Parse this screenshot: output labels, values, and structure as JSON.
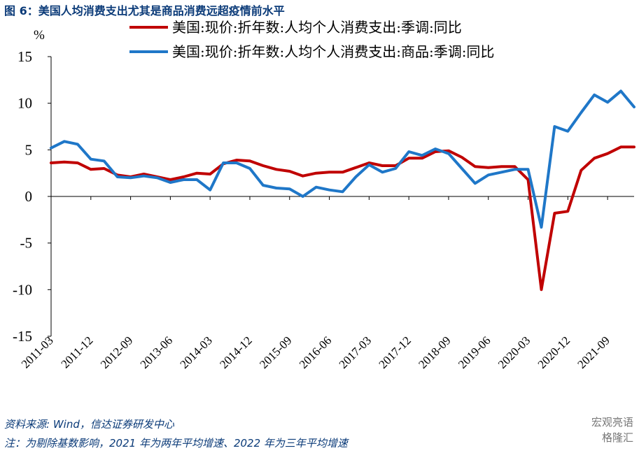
{
  "header": {
    "title": "图 6：美国人均消费支出尤其是商品消费远超疫情前水平"
  },
  "footer": {
    "source": "资料来源: Wind，信达证券研发中心",
    "note": "注：为剔除基数影响，2021 年为两年平均增速、2022 年为三年平均增速"
  },
  "watermark": {
    "line1": "宏观亮语",
    "line2": "格隆汇"
  },
  "chart_data": {
    "type": "line",
    "ylabel": "%",
    "ylim": [
      -15,
      15
    ],
    "yticks": [
      15,
      10,
      5,
      0,
      -5,
      -10,
      -15
    ],
    "xlim": [
      "2011-03",
      "2022-03"
    ],
    "xtick_labels": [
      "2011-03",
      "2011-12",
      "2012-09",
      "2013-06",
      "2014-03",
      "2014-12",
      "2015-09",
      "2016-06",
      "2017-03",
      "2017-12",
      "2018-09",
      "2019-06",
      "2020-03",
      "2020-12",
      "2021-09"
    ],
    "legend_position": "top",
    "series": [
      {
        "name": "美国:现价:折年数:人均个人消费支出:季调:同比",
        "color": "#c00000",
        "points": [
          [
            "2011-03",
            3.6
          ],
          [
            "2011-06",
            3.7
          ],
          [
            "2011-09",
            3.6
          ],
          [
            "2011-12",
            2.9
          ],
          [
            "2012-03",
            3.0
          ],
          [
            "2012-06",
            2.3
          ],
          [
            "2012-09",
            2.1
          ],
          [
            "2012-12",
            2.4
          ],
          [
            "2013-03",
            2.1
          ],
          [
            "2013-06",
            1.8
          ],
          [
            "2013-09",
            2.1
          ],
          [
            "2013-12",
            2.5
          ],
          [
            "2014-03",
            2.4
          ],
          [
            "2014-06",
            3.5
          ],
          [
            "2014-09",
            3.9
          ],
          [
            "2014-12",
            3.8
          ],
          [
            "2015-03",
            3.3
          ],
          [
            "2015-06",
            2.9
          ],
          [
            "2015-09",
            2.7
          ],
          [
            "2015-12",
            2.2
          ],
          [
            "2016-03",
            2.5
          ],
          [
            "2016-06",
            2.6
          ],
          [
            "2016-09",
            2.6
          ],
          [
            "2016-12",
            3.1
          ],
          [
            "2017-03",
            3.6
          ],
          [
            "2017-06",
            3.3
          ],
          [
            "2017-09",
            3.3
          ],
          [
            "2017-12",
            4.1
          ],
          [
            "2018-03",
            4.1
          ],
          [
            "2018-06",
            4.8
          ],
          [
            "2018-09",
            4.9
          ],
          [
            "2018-12",
            4.2
          ],
          [
            "2019-03",
            3.2
          ],
          [
            "2019-06",
            3.1
          ],
          [
            "2019-09",
            3.2
          ],
          [
            "2019-12",
            3.2
          ],
          [
            "2020-03",
            1.8
          ],
          [
            "2020-06",
            -10.0
          ],
          [
            "2020-09",
            -1.8
          ],
          [
            "2020-12",
            -1.6
          ],
          [
            "2021-03",
            2.8
          ],
          [
            "2021-06",
            4.1
          ],
          [
            "2021-09",
            4.6
          ],
          [
            "2021-12",
            5.3
          ],
          [
            "2022-03",
            5.3
          ]
        ]
      },
      {
        "name": "美国:现价:折年数:人均个人消费支出:商品:季调:同比",
        "color": "#1f77c8",
        "points": [
          [
            "2011-03",
            5.2
          ],
          [
            "2011-06",
            5.9
          ],
          [
            "2011-09",
            5.6
          ],
          [
            "2011-12",
            4.0
          ],
          [
            "2012-03",
            3.8
          ],
          [
            "2012-06",
            2.1
          ],
          [
            "2012-09",
            2.0
          ],
          [
            "2012-12",
            2.2
          ],
          [
            "2013-03",
            2.0
          ],
          [
            "2013-06",
            1.5
          ],
          [
            "2013-09",
            1.8
          ],
          [
            "2013-12",
            1.8
          ],
          [
            "2014-03",
            0.7
          ],
          [
            "2014-06",
            3.6
          ],
          [
            "2014-09",
            3.6
          ],
          [
            "2014-12",
            3.0
          ],
          [
            "2015-03",
            1.2
          ],
          [
            "2015-06",
            0.9
          ],
          [
            "2015-09",
            0.8
          ],
          [
            "2015-12",
            0.0
          ],
          [
            "2016-03",
            1.0
          ],
          [
            "2016-06",
            0.7
          ],
          [
            "2016-09",
            0.5
          ],
          [
            "2016-12",
            2.1
          ],
          [
            "2017-03",
            3.4
          ],
          [
            "2017-06",
            2.6
          ],
          [
            "2017-09",
            3.0
          ],
          [
            "2017-12",
            4.8
          ],
          [
            "2018-03",
            4.4
          ],
          [
            "2018-06",
            5.1
          ],
          [
            "2018-09",
            4.6
          ],
          [
            "2018-12",
            3.0
          ],
          [
            "2019-03",
            1.4
          ],
          [
            "2019-06",
            2.3
          ],
          [
            "2019-09",
            2.6
          ],
          [
            "2019-12",
            2.9
          ],
          [
            "2020-03",
            2.9
          ],
          [
            "2020-06",
            -3.3
          ],
          [
            "2020-09",
            7.5
          ],
          [
            "2020-12",
            7.0
          ],
          [
            "2021-03",
            9.0
          ],
          [
            "2021-06",
            10.9
          ],
          [
            "2021-09",
            10.1
          ],
          [
            "2021-12",
            11.3
          ],
          [
            "2022-03",
            9.6
          ]
        ]
      }
    ]
  }
}
